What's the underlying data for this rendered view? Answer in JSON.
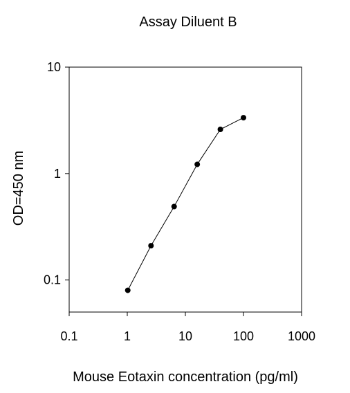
{
  "chart_data": {
    "type": "line",
    "title": "Assay Diluent B",
    "xlabel": "Mouse Eotaxin concentration (pg/ml)",
    "ylabel": "OD=450 nm",
    "x_scale": "log",
    "y_scale": "log",
    "xlim": [
      0.1,
      1000
    ],
    "ylim": [
      0.05,
      10
    ],
    "x_ticks": [
      0.1,
      1,
      10,
      100,
      1000
    ],
    "x_tick_labels": [
      "0.1",
      "1",
      "10",
      "100",
      "1000"
    ],
    "y_ticks": [
      0.1,
      1,
      10
    ],
    "y_tick_labels": [
      "0.1",
      "1",
      "10"
    ],
    "grid": false,
    "legend": "none",
    "series": [
      {
        "x": [
          1.02,
          2.56,
          6.4,
          16,
          40,
          100
        ],
        "y": [
          0.08,
          0.21,
          0.49,
          1.22,
          2.6,
          3.35
        ]
      }
    ]
  }
}
